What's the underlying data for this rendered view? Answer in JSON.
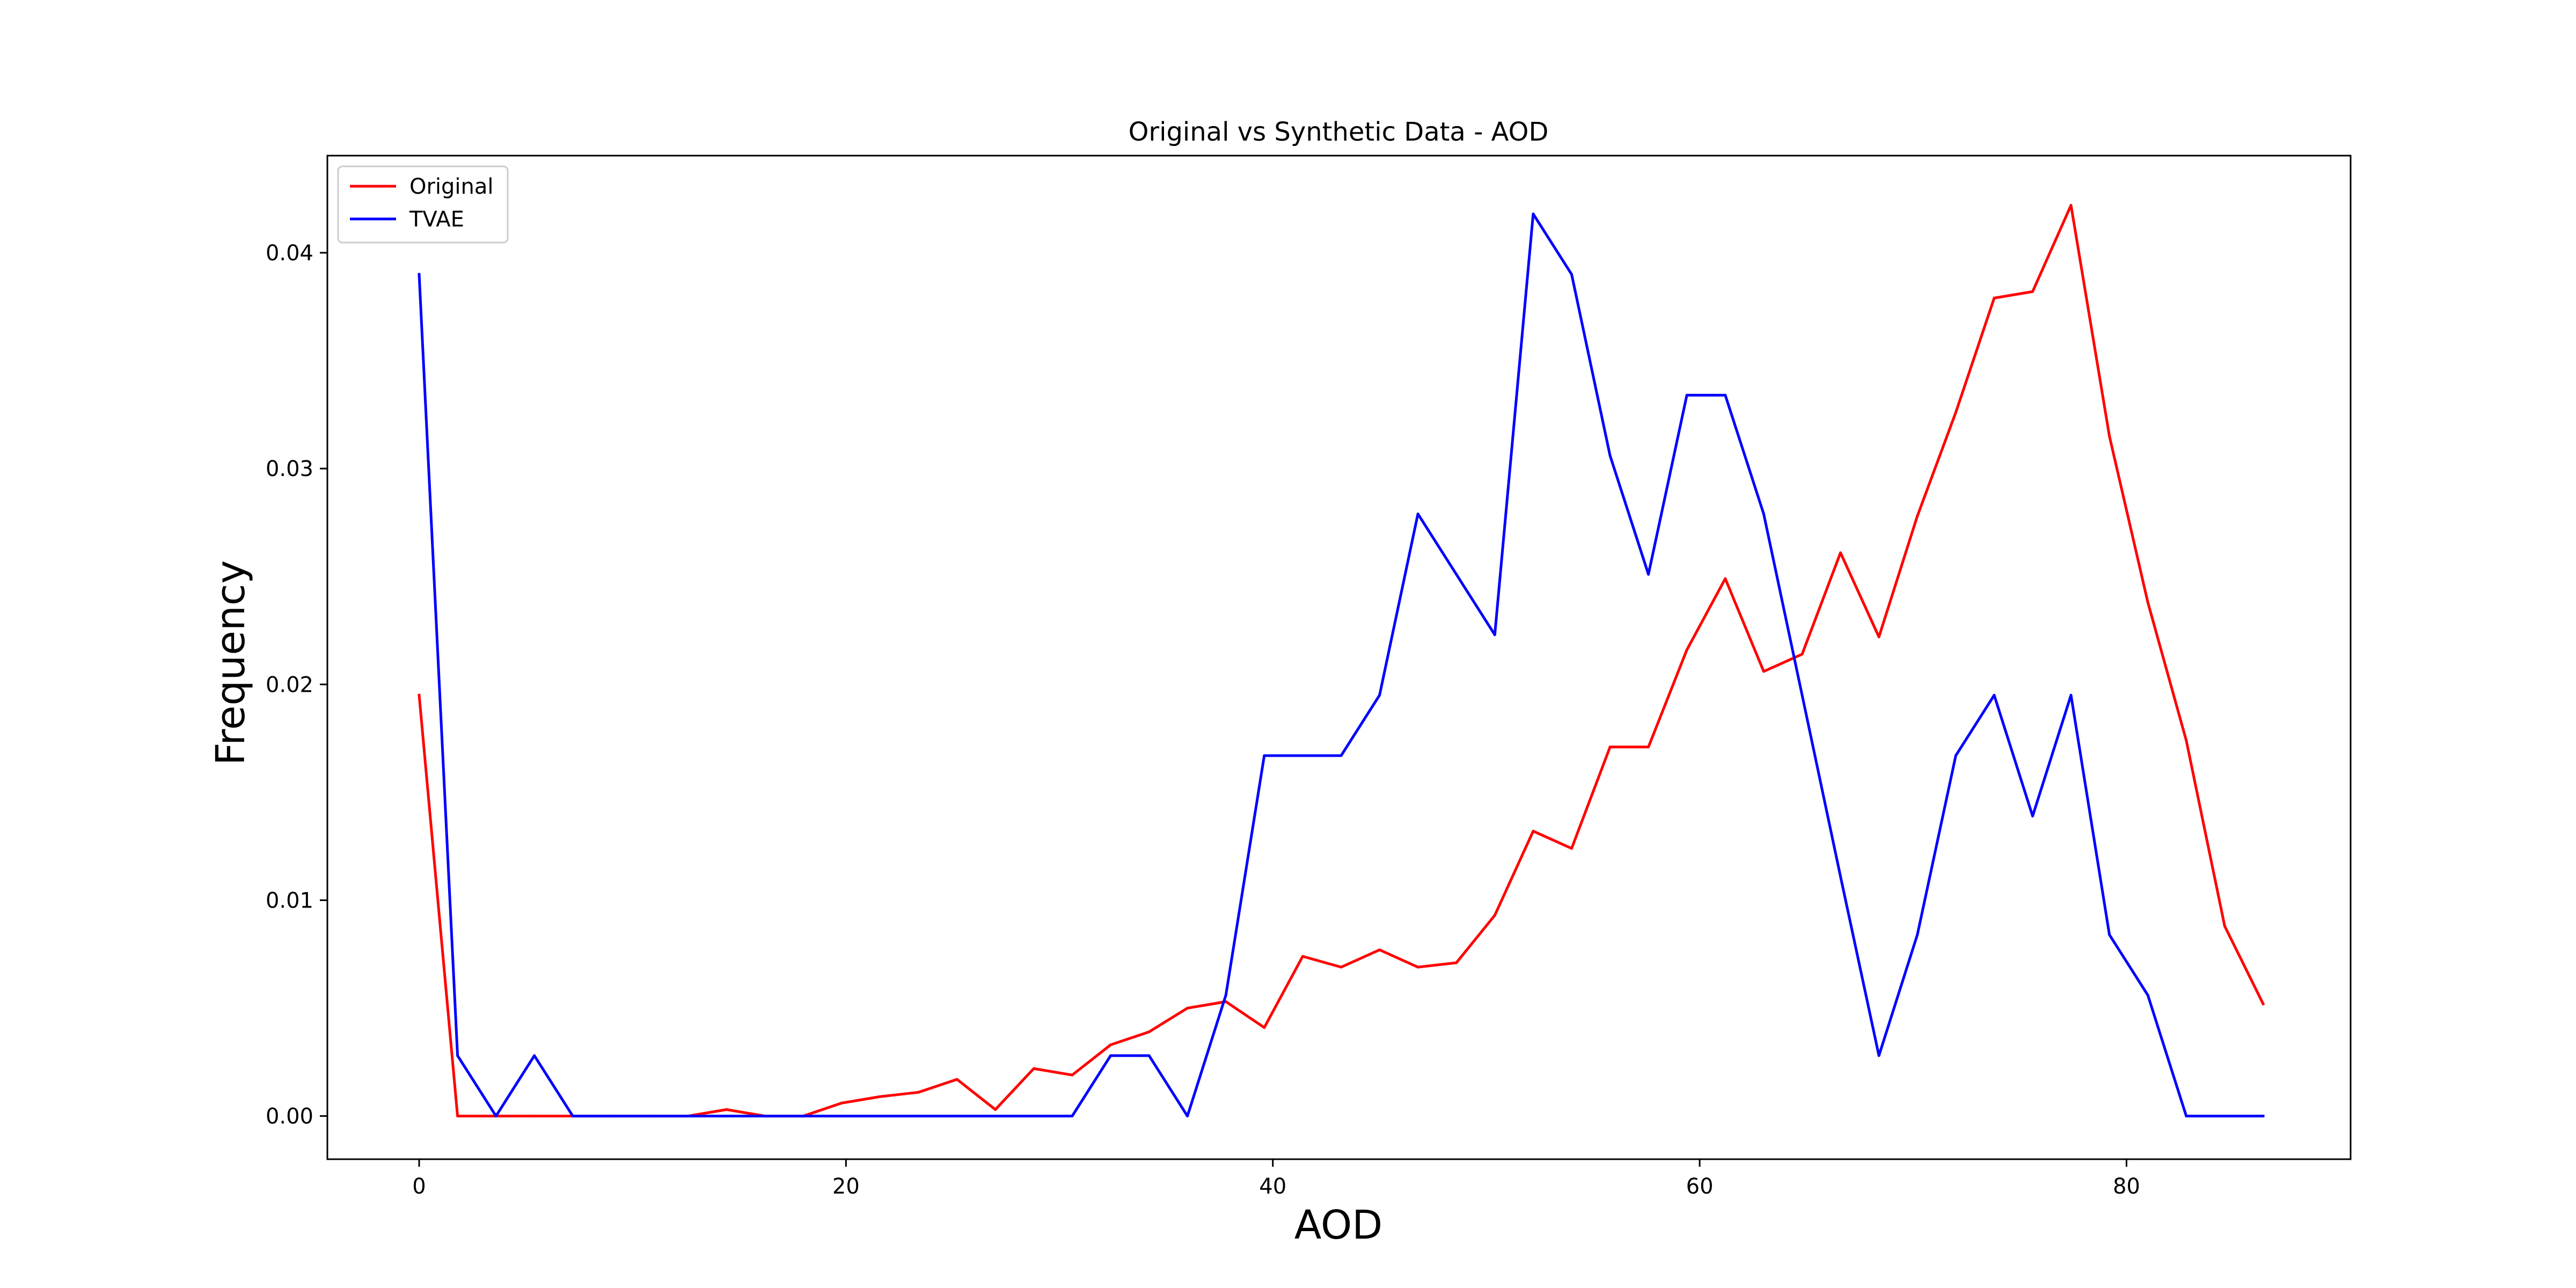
{
  "chart_data": {
    "type": "line",
    "title": "Original vs Synthetic Data - AOD",
    "xlabel": "AOD",
    "ylabel": "Frequency",
    "xlim": [
      -4.3,
      90.5
    ],
    "ylim": [
      -0.002,
      0.0445
    ],
    "xticks": [
      0,
      20,
      40,
      60,
      80
    ],
    "xtick_labels": [
      "0",
      "20",
      "40",
      "60",
      "80"
    ],
    "yticks": [
      0.0,
      0.01,
      0.02,
      0.03,
      0.04
    ],
    "ytick_labels": [
      "0.00",
      "0.01",
      "0.02",
      "0.03",
      "0.04"
    ],
    "grid": false,
    "legend_position": "upper left",
    "x": [
      0.0,
      1.8,
      3.6,
      5.4,
      7.2,
      9.0,
      10.8,
      12.6,
      14.4,
      16.2,
      18.0,
      19.8,
      21.6,
      23.4,
      25.2,
      27.0,
      28.8,
      30.6,
      32.4,
      34.2,
      36.0,
      37.8,
      39.6,
      41.4,
      43.2,
      45.0,
      46.8,
      48.6,
      50.4,
      52.2,
      54.0,
      55.8,
      57.6,
      59.4,
      61.2,
      63.0,
      64.8,
      66.6,
      68.4,
      70.2,
      72.0,
      73.8,
      75.6,
      77.4,
      79.2,
      81.0,
      82.8,
      84.6,
      86.4
    ],
    "series": [
      {
        "name": "Original",
        "color": "#ff0000",
        "values": [
          0.0195,
          0.0,
          0.0,
          0.0,
          0.0,
          0.0,
          0.0,
          0.0,
          0.0003,
          0.0,
          0.0,
          0.0006,
          0.0009,
          0.0011,
          0.0017,
          0.0003,
          0.0022,
          0.0019,
          0.0033,
          0.0039,
          0.005,
          0.0053,
          0.0041,
          0.0074,
          0.0069,
          0.0077,
          0.0069,
          0.0071,
          0.0093,
          0.0132,
          0.0124,
          0.0171,
          0.0171,
          0.0216,
          0.0249,
          0.0206,
          0.0214,
          0.0261,
          0.0222,
          0.0278,
          0.0326,
          0.0379,
          0.0382,
          0.0422,
          0.0315,
          0.0238,
          0.0174,
          0.0088,
          0.0052
        ]
      },
      {
        "name": "TVAE",
        "color": "#0000ff",
        "values": [
          0.039,
          0.0028,
          0.0,
          0.0028,
          0.0,
          0.0,
          0.0,
          0.0,
          0.0,
          0.0,
          0.0,
          0.0,
          0.0,
          0.0,
          0.0,
          0.0,
          0.0,
          0.0,
          0.0028,
          0.0028,
          0.0,
          0.0056,
          0.0167,
          0.0167,
          0.0167,
          0.0195,
          0.0279,
          0.0251,
          0.0223,
          0.0418,
          0.039,
          0.0306,
          0.0251,
          0.0334,
          0.0334,
          0.0279,
          0.0195,
          0.0111,
          0.0028,
          0.0084,
          0.0167,
          0.0195,
          0.0139,
          0.0195,
          0.0084,
          0.0056,
          0.0,
          0.0,
          0.0
        ]
      }
    ]
  }
}
